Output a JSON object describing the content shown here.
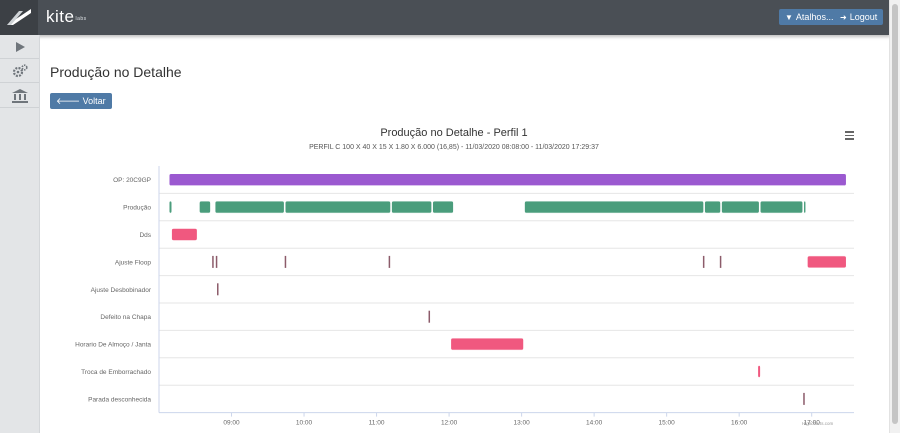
{
  "app": {
    "brand": "kite",
    "brand_suffix": "labs",
    "shortcuts_label": "Atalhos...",
    "logout_label": "Logout"
  },
  "sidebar": {
    "items": [
      {
        "icon": "play-icon"
      },
      {
        "icon": "gears-icon"
      },
      {
        "icon": "bank-icon"
      }
    ]
  },
  "page": {
    "title": "Produção no Detalhe",
    "back_label": "Voltar"
  },
  "colors": {
    "purple": "#9b59d0",
    "green": "#4a9d7c",
    "pink": "#f0587f",
    "dark_line": "#8c5b6a",
    "nav": "#4a4f55",
    "button": "#4f7aa6"
  },
  "chart_data": {
    "type": "xrange",
    "title": "Produção no Detalhe - Perfil 1",
    "subtitle": "PERFIL C 100 X 40 X 15 X 1.80 X 6.000 (16,85) - 11/03/2020 08:08:00 - 11/03/2020 17:29:37",
    "categories": [
      "OP: 20C9GP",
      "Produção",
      "Dds",
      "Ajuste Floop",
      "Ajuste Desbobinador",
      "Defeito na Chapa",
      "Horario De Almoço / Janta",
      "Troca de Emborrachado",
      "Parada desconhecida"
    ],
    "x_ticks": [
      "09:00",
      "10:00",
      "11:00",
      "12:00",
      "13:00",
      "14:00",
      "15:00",
      "16:00",
      "17:00"
    ],
    "x_range": [
      "08:00",
      "17:35"
    ],
    "credit": "Highcharts.com",
    "bars": [
      {
        "category": 0,
        "start": "08:08",
        "end": "17:29",
        "color": "purple"
      },
      {
        "category": 1,
        "start": "08:08",
        "end": "08:11",
        "color": "green"
      },
      {
        "category": 1,
        "start": "08:33",
        "end": "08:43",
        "color": "green"
      },
      {
        "category": 1,
        "start": "08:46",
        "end": "09:44",
        "color": "green"
      },
      {
        "category": 1,
        "start": "09:44",
        "end": "11:12",
        "color": "green"
      },
      {
        "category": 1,
        "start": "11:12",
        "end": "11:46",
        "color": "green"
      },
      {
        "category": 1,
        "start": "11:46",
        "end": "12:04",
        "color": "green"
      },
      {
        "category": 1,
        "start": "13:02",
        "end": "15:31",
        "color": "green"
      },
      {
        "category": 1,
        "start": "15:31",
        "end": "15:45",
        "color": "green"
      },
      {
        "category": 1,
        "start": "15:45",
        "end": "16:17",
        "color": "green"
      },
      {
        "category": 1,
        "start": "16:17",
        "end": "16:53",
        "color": "green"
      },
      {
        "category": 1,
        "start": "16:53",
        "end": "16:55",
        "color": "green"
      },
      {
        "category": 2,
        "start": "08:10",
        "end": "08:32",
        "color": "pink"
      },
      {
        "category": 3,
        "start": "08:44",
        "end": "08:45",
        "color": "dark_line"
      },
      {
        "category": 3,
        "start": "08:47",
        "end": "08:48",
        "color": "dark_line"
      },
      {
        "category": 3,
        "start": "09:44",
        "end": "09:45",
        "color": "dark_line"
      },
      {
        "category": 3,
        "start": "11:10",
        "end": "11:11",
        "color": "dark_line"
      },
      {
        "category": 3,
        "start": "15:30",
        "end": "15:31",
        "color": "dark_line"
      },
      {
        "category": 3,
        "start": "15:44",
        "end": "15:45",
        "color": "dark_line"
      },
      {
        "category": 3,
        "start": "16:56",
        "end": "17:29",
        "color": "pink"
      },
      {
        "category": 4,
        "start": "08:48",
        "end": "08:49",
        "color": "dark_line"
      },
      {
        "category": 5,
        "start": "11:43",
        "end": "11:44",
        "color": "dark_line"
      },
      {
        "category": 6,
        "start": "12:01",
        "end": "13:02",
        "color": "pink"
      },
      {
        "category": 7,
        "start": "16:15",
        "end": "16:18",
        "color": "pink"
      },
      {
        "category": 8,
        "start": "16:53",
        "end": "16:54",
        "color": "dark_line"
      }
    ]
  }
}
